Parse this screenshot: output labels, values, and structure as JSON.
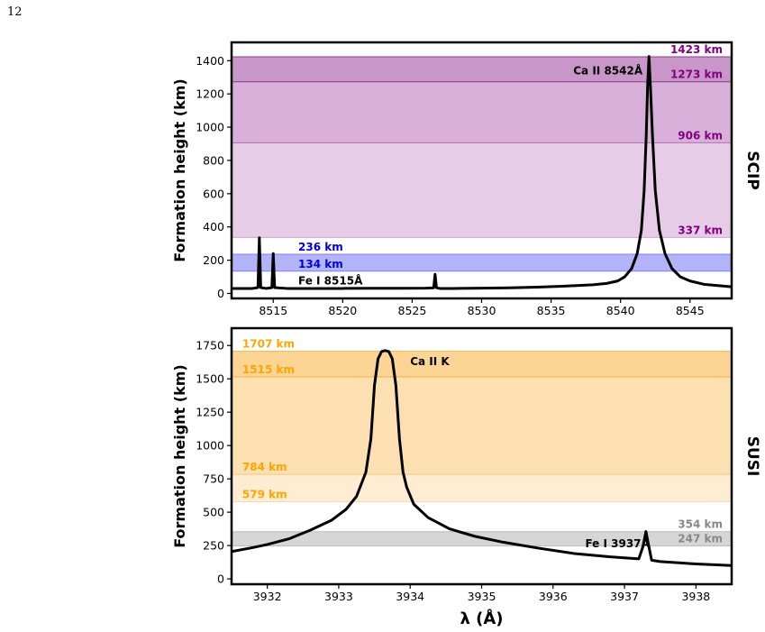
{
  "page_number": "12",
  "chart_data": [
    {
      "type": "line",
      "panel_label": "SCIP",
      "ylabel": "Formation height (km)",
      "xlabel": "",
      "xlim": [
        8512.0,
        8548.0
      ],
      "ylim": [
        -30,
        1510
      ],
      "xticks": [
        8515,
        8520,
        8525,
        8530,
        8535,
        8540,
        8545
      ],
      "yticks": [
        0,
        200,
        400,
        600,
        800,
        1000,
        1200,
        1400
      ],
      "bands": [
        {
          "from": 1273,
          "to": 1423,
          "color": "#c896c8"
        },
        {
          "from": 906,
          "to": 1273,
          "color": "#d9b0d9"
        },
        {
          "from": 337,
          "to": 906,
          "color": "#e6cce6"
        },
        {
          "from": 134,
          "to": 236,
          "color": "#b3b3fa"
        }
      ],
      "lines": [
        {
          "y": 1423,
          "color": "#8a3a8a"
        },
        {
          "y": 1273,
          "color": "#8a3a8a"
        },
        {
          "y": 906,
          "color": "#b070b0"
        },
        {
          "y": 337,
          "color": "#d0a8d0"
        },
        {
          "y": 236,
          "color": "#8080ee"
        },
        {
          "y": 134,
          "color": "#8080ee"
        }
      ],
      "height_labels": [
        {
          "text": "1423 km",
          "y": 1423,
          "color": "#800080",
          "anchor": "right"
        },
        {
          "text": "1273 km",
          "y": 1273,
          "color": "#800080",
          "anchor": "right"
        },
        {
          "text": "906 km",
          "y": 906,
          "color": "#800080",
          "anchor": "right"
        },
        {
          "text": "337 km",
          "y": 337,
          "color": "#800080",
          "anchor": "right"
        },
        {
          "text": "236 km",
          "y": 236,
          "color": "#0000dd",
          "anchor": "left",
          "x": 8516.8
        },
        {
          "text": "134 km",
          "y": 134,
          "color": "#0000dd",
          "anchor": "left",
          "x": 8516.8
        }
      ],
      "line_labels": [
        {
          "text": "Ca II 8542Å",
          "x": 8536.6,
          "y": 1340
        },
        {
          "text": "Fe I 8515Å",
          "x": 8516.8,
          "y": 75
        }
      ],
      "series": [
        {
          "color": "#000000",
          "x": [
            8512.0,
            8513.5,
            8513.9,
            8514.0,
            8514.1,
            8514.5,
            8514.9,
            8515.0,
            8515.1,
            8516,
            8518,
            8520,
            8522,
            8524,
            8526,
            8526.55,
            8526.65,
            8526.75,
            8527,
            8528,
            8530,
            8532,
            8534,
            8536,
            8538,
            8539,
            8539.8,
            8540.3,
            8540.8,
            8541.2,
            8541.5,
            8541.7,
            8541.85,
            8541.95,
            8542.05,
            8542.15,
            8542.3,
            8542.5,
            8542.8,
            8543.2,
            8543.7,
            8544.3,
            8545,
            8546,
            8548
          ],
          "y": [
            30,
            30,
            35,
            335,
            35,
            30,
            35,
            240,
            35,
            30,
            30,
            30,
            31,
            31,
            32,
            34,
            115,
            34,
            30,
            30,
            32,
            34,
            38,
            44,
            52,
            60,
            75,
            100,
            150,
            240,
            380,
            620,
            950,
            1250,
            1425,
            1250,
            950,
            620,
            380,
            240,
            150,
            100,
            75,
            55,
            40
          ]
        }
      ]
    },
    {
      "type": "line",
      "panel_label": "SUSI",
      "ylabel": "Formation height (km)",
      "xlabel": "λ (Å)",
      "xlim": [
        3931.5,
        3938.5
      ],
      "ylim": [
        -40,
        1880
      ],
      "xticks": [
        3932,
        3933,
        3934,
        3935,
        3936,
        3937,
        3938
      ],
      "yticks": [
        0,
        250,
        500,
        750,
        1000,
        1250,
        1500,
        1750
      ],
      "bands": [
        {
          "from": 1515,
          "to": 1707,
          "color": "#fcd595"
        },
        {
          "from": 784,
          "to": 1515,
          "color": "#fde0b2"
        },
        {
          "from": 579,
          "to": 784,
          "color": "#feedd2"
        },
        {
          "from": 247,
          "to": 354,
          "color": "#d6d6d6"
        }
      ],
      "lines": [
        {
          "y": 1707,
          "color": "#f2b450"
        },
        {
          "y": 1515,
          "color": "#f2b450"
        },
        {
          "y": 784,
          "color": "#f6c880"
        },
        {
          "y": 579,
          "color": "#f8dcb0"
        },
        {
          "y": 354,
          "color": "#bbbbbb"
        },
        {
          "y": 247,
          "color": "#bbbbbb"
        }
      ],
      "height_labels": [
        {
          "text": "1707 km",
          "y": 1707,
          "color": "#ffa500",
          "anchor": "left",
          "x": 3931.65
        },
        {
          "text": "1515 km",
          "y": 1515,
          "color": "#ffa500",
          "anchor": "left",
          "x": 3931.65
        },
        {
          "text": "784 km",
          "y": 784,
          "color": "#ffa500",
          "anchor": "left",
          "x": 3931.65
        },
        {
          "text": "579 km",
          "y": 579,
          "color": "#ffa500",
          "anchor": "left",
          "x": 3931.65
        },
        {
          "text": "354 km",
          "y": 354,
          "color": "#888888",
          "anchor": "right"
        },
        {
          "text": "247 km",
          "y": 247,
          "color": "#888888",
          "anchor": "right"
        }
      ],
      "line_labels": [
        {
          "text": "Ca II K",
          "x": 3934.0,
          "y": 1630
        },
        {
          "text": "Fe I 3937Å",
          "x": 3936.45,
          "y": 265
        }
      ],
      "series": [
        {
          "color": "#000000",
          "x": [
            3931.5,
            3931.8,
            3932.0,
            3932.3,
            3932.6,
            3932.9,
            3933.1,
            3933.25,
            3933.38,
            3933.45,
            3933.5,
            3933.55,
            3933.6,
            3933.65,
            3933.7,
            3933.75,
            3933.8,
            3933.85,
            3933.9,
            3933.95,
            3934.05,
            3934.25,
            3934.55,
            3934.9,
            3935.3,
            3935.8,
            3936.3,
            3936.8,
            3937.2,
            3937.26,
            3937.3,
            3937.34,
            3937.38,
            3937.5,
            3938.0,
            3938.5
          ],
          "y": [
            205,
            235,
            258,
            300,
            365,
            440,
            520,
            620,
            800,
            1050,
            1450,
            1650,
            1705,
            1712,
            1705,
            1650,
            1450,
            1050,
            800,
            690,
            560,
            460,
            375,
            320,
            275,
            230,
            190,
            165,
            150,
            245,
            355,
            245,
            140,
            130,
            112,
            100
          ]
        }
      ]
    }
  ]
}
